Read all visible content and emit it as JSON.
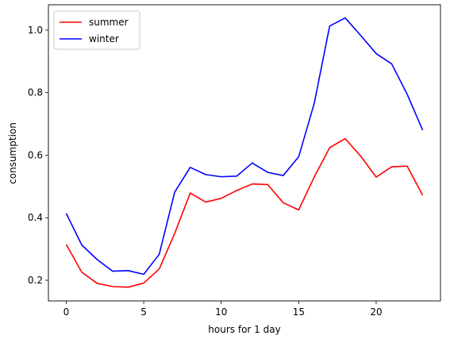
{
  "chart_data": {
    "type": "line",
    "title": "",
    "xlabel": "hours for 1 day",
    "ylabel": "consumption",
    "xlim": [
      -1.15,
      24.15
    ],
    "ylim": [
      0.134,
      1.081
    ],
    "xticks": [
      0,
      5,
      10,
      15,
      20
    ],
    "yticks": [
      0.2,
      0.4,
      0.6,
      0.8,
      1.0
    ],
    "xtick_labels": [
      "0",
      "5",
      "10",
      "15",
      "20"
    ],
    "ytick_labels": [
      "0.2",
      "0.4",
      "0.6",
      "0.8",
      "1.0"
    ],
    "grid": false,
    "legend": "top-left",
    "x": [
      0,
      1,
      2,
      3,
      4,
      5,
      6,
      7,
      8,
      9,
      10,
      11,
      12,
      13,
      14,
      15,
      16,
      17,
      18,
      19,
      20,
      21,
      22,
      23
    ],
    "series": [
      {
        "name": "summer",
        "color": "#ff0000",
        "values": [
          0.315,
          0.226,
          0.19,
          0.18,
          0.178,
          0.191,
          0.236,
          0.35,
          0.479,
          0.45,
          0.462,
          0.487,
          0.508,
          0.506,
          0.448,
          0.425,
          0.53,
          0.624,
          0.653,
          0.597,
          0.53,
          0.563,
          0.565,
          0.472
        ]
      },
      {
        "name": "winter",
        "color": "#0000ff",
        "values": [
          0.414,
          0.313,
          0.266,
          0.229,
          0.231,
          0.219,
          0.283,
          0.482,
          0.561,
          0.538,
          0.531,
          0.533,
          0.575,
          0.545,
          0.535,
          0.595,
          0.765,
          1.013,
          1.039,
          0.983,
          0.925,
          0.892,
          0.795,
          0.68
        ]
      }
    ]
  }
}
